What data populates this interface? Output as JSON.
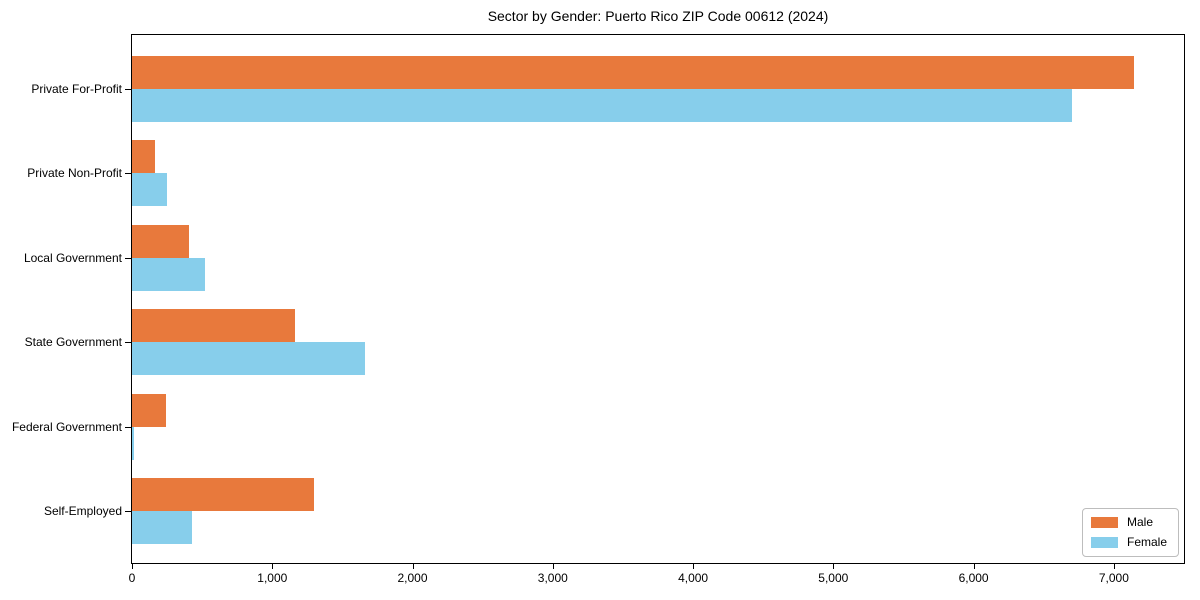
{
  "title": "Sector by Gender: Puerto Rico ZIP Code 00612 (2024)",
  "colors": {
    "male": "#E8793C",
    "female": "#87CEEB",
    "spine": "#000000",
    "legend_border": "#BDBDBD",
    "background": "#FFFFFF",
    "text": "#000000"
  },
  "legend": {
    "position": "lower-right",
    "items": [
      {
        "label": "Male",
        "color": "#E8793C"
      },
      {
        "label": "Female",
        "color": "#87CEEB"
      }
    ]
  },
  "chart_data": {
    "type": "bar",
    "orientation": "horizontal",
    "title": "Sector by Gender: Puerto Rico ZIP Code 00612 (2024)",
    "xlabel": "",
    "ylabel": "",
    "categories": [
      "Private For-Profit",
      "Private Non-Profit",
      "Local Government",
      "State Government",
      "Federal Government",
      "Self-Employed"
    ],
    "series": [
      {
        "name": "Male",
        "color": "#E8793C",
        "values": [
          7140,
          165,
          405,
          1160,
          245,
          1295
        ]
      },
      {
        "name": "Female",
        "color": "#87CEEB",
        "values": [
          6700,
          250,
          520,
          1660,
          15,
          430
        ]
      }
    ],
    "xlim": [
      0,
      7500
    ],
    "xticks": [
      0,
      1000,
      2000,
      3000,
      4000,
      5000,
      6000,
      7000
    ],
    "xtick_labels": [
      "0",
      "1,000",
      "2,000",
      "3,000",
      "4,000",
      "5,000",
      "6,000",
      "7,000"
    ],
    "grid": false,
    "legend_position": "lower right"
  }
}
